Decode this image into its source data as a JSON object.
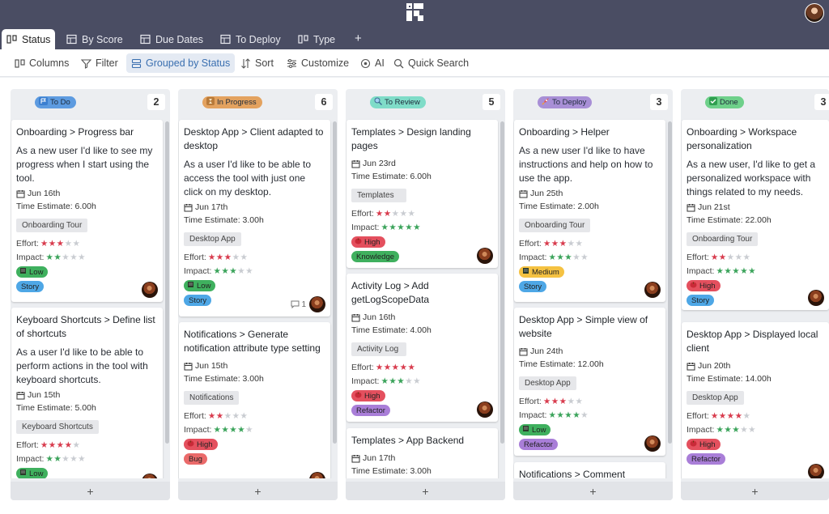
{
  "tabs": [
    {
      "label": "Status",
      "icon": "columns-icon",
      "active": true
    },
    {
      "label": "By Score",
      "icon": "table-icon",
      "active": false
    },
    {
      "label": "Due Dates",
      "icon": "table-icon",
      "active": false
    },
    {
      "label": "To Deploy",
      "icon": "table-icon",
      "active": false
    },
    {
      "label": "Type",
      "icon": "columns-icon",
      "active": false
    }
  ],
  "toolbar": {
    "columns": "Columns",
    "filter": "Filter",
    "grouped": "Grouped by Status",
    "sort": "Sort",
    "customize": "Customize",
    "ai": "AI",
    "search": "Quick Search"
  },
  "labels": {
    "time_estimate": "Time Estimate:",
    "effort": "Effort:",
    "impact": "Impact:"
  },
  "columns": [
    {
      "name": "To Do",
      "count": "2",
      "badge_color": "#5d9be0",
      "icon": "flag-icon",
      "cards": [
        {
          "title": "Onboarding > Progress bar",
          "desc": "As a new user I'd like to see my progress when I start using the tool.",
          "date": "Jun 16th",
          "estimate": "6.00h",
          "tag": "Onboarding Tour",
          "effort": 3,
          "impact": 2,
          "priority": "Low",
          "type": "Story",
          "comments": ""
        },
        {
          "title": "Keyboard Shortcuts > Define list of shortcuts",
          "desc": "As a user I'd like to be able to perform actions in the tool with keyboard shortcuts.",
          "date": "Jun 15th",
          "estimate": "5.00h",
          "tag": "Keyboard Shortcuts",
          "effort": 4,
          "impact": 2,
          "priority": "Low",
          "type": "",
          "comments": ""
        }
      ]
    },
    {
      "name": "In Progress",
      "count": "6",
      "badge_color": "#e3a25f",
      "icon": "hourglass-icon",
      "cards": [
        {
          "title": "Desktop App > Client adapted to desktop",
          "desc": "As a user I'd like to be able to access the tool with just one click on my desktop.",
          "date": "Jun 17th",
          "estimate": "3.00h",
          "tag": "Desktop App",
          "effort": 3,
          "impact": 3,
          "priority": "Low",
          "type": "Story",
          "comments": "1"
        },
        {
          "title": "Notifications > Generate notification attribute type setting",
          "desc": "",
          "date": "Jun 15th",
          "estimate": "3.00h",
          "tag": "Notifications",
          "effort": 2,
          "impact": 4,
          "priority": "High",
          "type": "Bug",
          "comments": ""
        }
      ]
    },
    {
      "name": "To Review",
      "count": "5",
      "badge_color": "#7fdcc8",
      "icon": "magnifier-icon",
      "cards": [
        {
          "title": "Templates > Design landing pages",
          "desc": "",
          "date": "Jun 23rd",
          "estimate": "6.00h",
          "tag": "Templates",
          "effort": 2,
          "impact": 5,
          "priority": "High",
          "type": "Knowledge",
          "comments": ""
        },
        {
          "title": "Activity Log > Add getLogScopeData",
          "desc": "",
          "date": "Jun 16th",
          "estimate": "4.00h",
          "tag": "Activity Log",
          "effort": 5,
          "impact": 3,
          "priority": "High",
          "type": "Refactor",
          "comments": ""
        },
        {
          "title": "Templates > App Backend",
          "desc": "",
          "date": "Jun 17th",
          "estimate": "3.00h",
          "tag": "",
          "effort": 0,
          "impact": 0,
          "priority": "",
          "type": "",
          "comments": ""
        }
      ]
    },
    {
      "name": "To Deploy",
      "count": "3",
      "badge_color": "#a88fd6",
      "icon": "rocket-icon",
      "cards": [
        {
          "title": "Onboarding > Helper",
          "desc": "As a new user I'd like to have instructions and help on how to use the app.",
          "date": "Jun 25th",
          "estimate": "2.00h",
          "tag": "Onboarding Tour",
          "effort": 3,
          "impact": 3,
          "priority": "Medium",
          "type": "Story",
          "comments": ""
        },
        {
          "title": "Desktop App > Simple view of website",
          "desc": "",
          "date": "Jun 24th",
          "estimate": "12.00h",
          "tag": "Desktop App",
          "effort": 3,
          "impact": 4,
          "priority": "Low",
          "type": "Refactor",
          "comments": ""
        },
        {
          "title": "Notifications > Comment",
          "desc": "",
          "date": "",
          "estimate": "",
          "tag": "",
          "effort": 0,
          "impact": 0,
          "priority": "",
          "type": "",
          "comments": ""
        }
      ]
    },
    {
      "name": "Done",
      "count": "3",
      "badge_color": "#6ed08a",
      "icon": "check-icon",
      "cards": [
        {
          "title": "Onboarding > Workspace personalization",
          "desc": "As a new user, I'd like to get a personalized workspace with things related to my needs.",
          "date": "Jun 21st",
          "estimate": "22.00h",
          "tag": "Onboarding Tour",
          "effort": 2,
          "impact": 5,
          "priority": "High",
          "type": "Story",
          "comments": ""
        },
        {
          "title": "Desktop App > Displayed local client",
          "desc": "",
          "date": "Jun 20th",
          "estimate": "14.00h",
          "tag": "Desktop App",
          "effort": 4,
          "impact": 3,
          "priority": "High",
          "type": "Refactor",
          "comments": ""
        }
      ]
    }
  ],
  "colors": {
    "priority": {
      "Low": "#3fb05e",
      "High": "#e4505e",
      "Medium": "#f5c242"
    },
    "type": {
      "Story": "#4ea7e6",
      "Bug": "#ea6a6a",
      "Knowledge": "#3fb05e",
      "Refactor": "#a97ed8"
    }
  }
}
